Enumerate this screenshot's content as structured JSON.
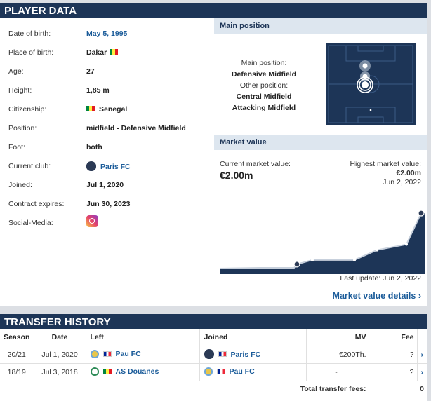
{
  "player_data": {
    "title": "PLAYER DATA",
    "rows": [
      {
        "label": "Date of birth:",
        "value": "May 5, 1995"
      },
      {
        "label": "Place of birth:",
        "value": "Dakar"
      },
      {
        "label": "Age:",
        "value": "27"
      },
      {
        "label": "Height:",
        "value": "1,85 m"
      },
      {
        "label": "Citizenship:",
        "value": "Senegal"
      },
      {
        "label": "Position:",
        "value": "midfield - Defensive Midfield"
      },
      {
        "label": "Foot:",
        "value": "both"
      },
      {
        "label": "Current club:",
        "value": "Paris FC"
      },
      {
        "label": "Joined:",
        "value": "Jul 1, 2020"
      },
      {
        "label": "Contract expires:",
        "value": "Jun 30, 2023"
      },
      {
        "label": "Social-Media:",
        "value": ""
      }
    ]
  },
  "main_position": {
    "title": "Main position",
    "main_label": "Main position:",
    "main_value": "Defensive Midfield",
    "other_label": "Other position:",
    "other_values": [
      "Central Midfield",
      "Attacking Midfield"
    ]
  },
  "market_value": {
    "title": "Market value",
    "current_label": "Current market value:",
    "current_value": "€2.00m",
    "highest_label": "Highest market value:",
    "highest_value": "€2.00m",
    "highest_date": "Jun 2, 2022",
    "last_update": "Last update: Jun 2, 2022",
    "details_link": "Market value details",
    "chart_color": "#1d3557"
  },
  "chart_data": {
    "type": "area",
    "values": [
      0.05,
      0.075,
      0.075,
      0.2,
      0.35,
      0.35,
      0.35,
      0.7,
      0.9,
      2.0
    ],
    "x": [
      "",
      "",
      "",
      "",
      "",
      "",
      "",
      "",
      "",
      "Jun 2, 2022"
    ]
  },
  "transfer_history": {
    "title": "TRANSFER HISTORY",
    "columns": [
      "Season",
      "Date",
      "Left",
      "Joined",
      "MV",
      "Fee"
    ],
    "rows": [
      {
        "season": "20/21",
        "date": "Jul 1, 2020",
        "left": "Pau FC",
        "joined": "Paris FC",
        "mv": "€200Th.",
        "fee": "?"
      },
      {
        "season": "18/19",
        "date": "Jul 3, 2018",
        "left": "AS Douanes",
        "joined": "Pau FC",
        "mv": "-",
        "fee": "?"
      }
    ],
    "total_label": "Total transfer fees:",
    "total_value": "0",
    "arrow": "›"
  }
}
